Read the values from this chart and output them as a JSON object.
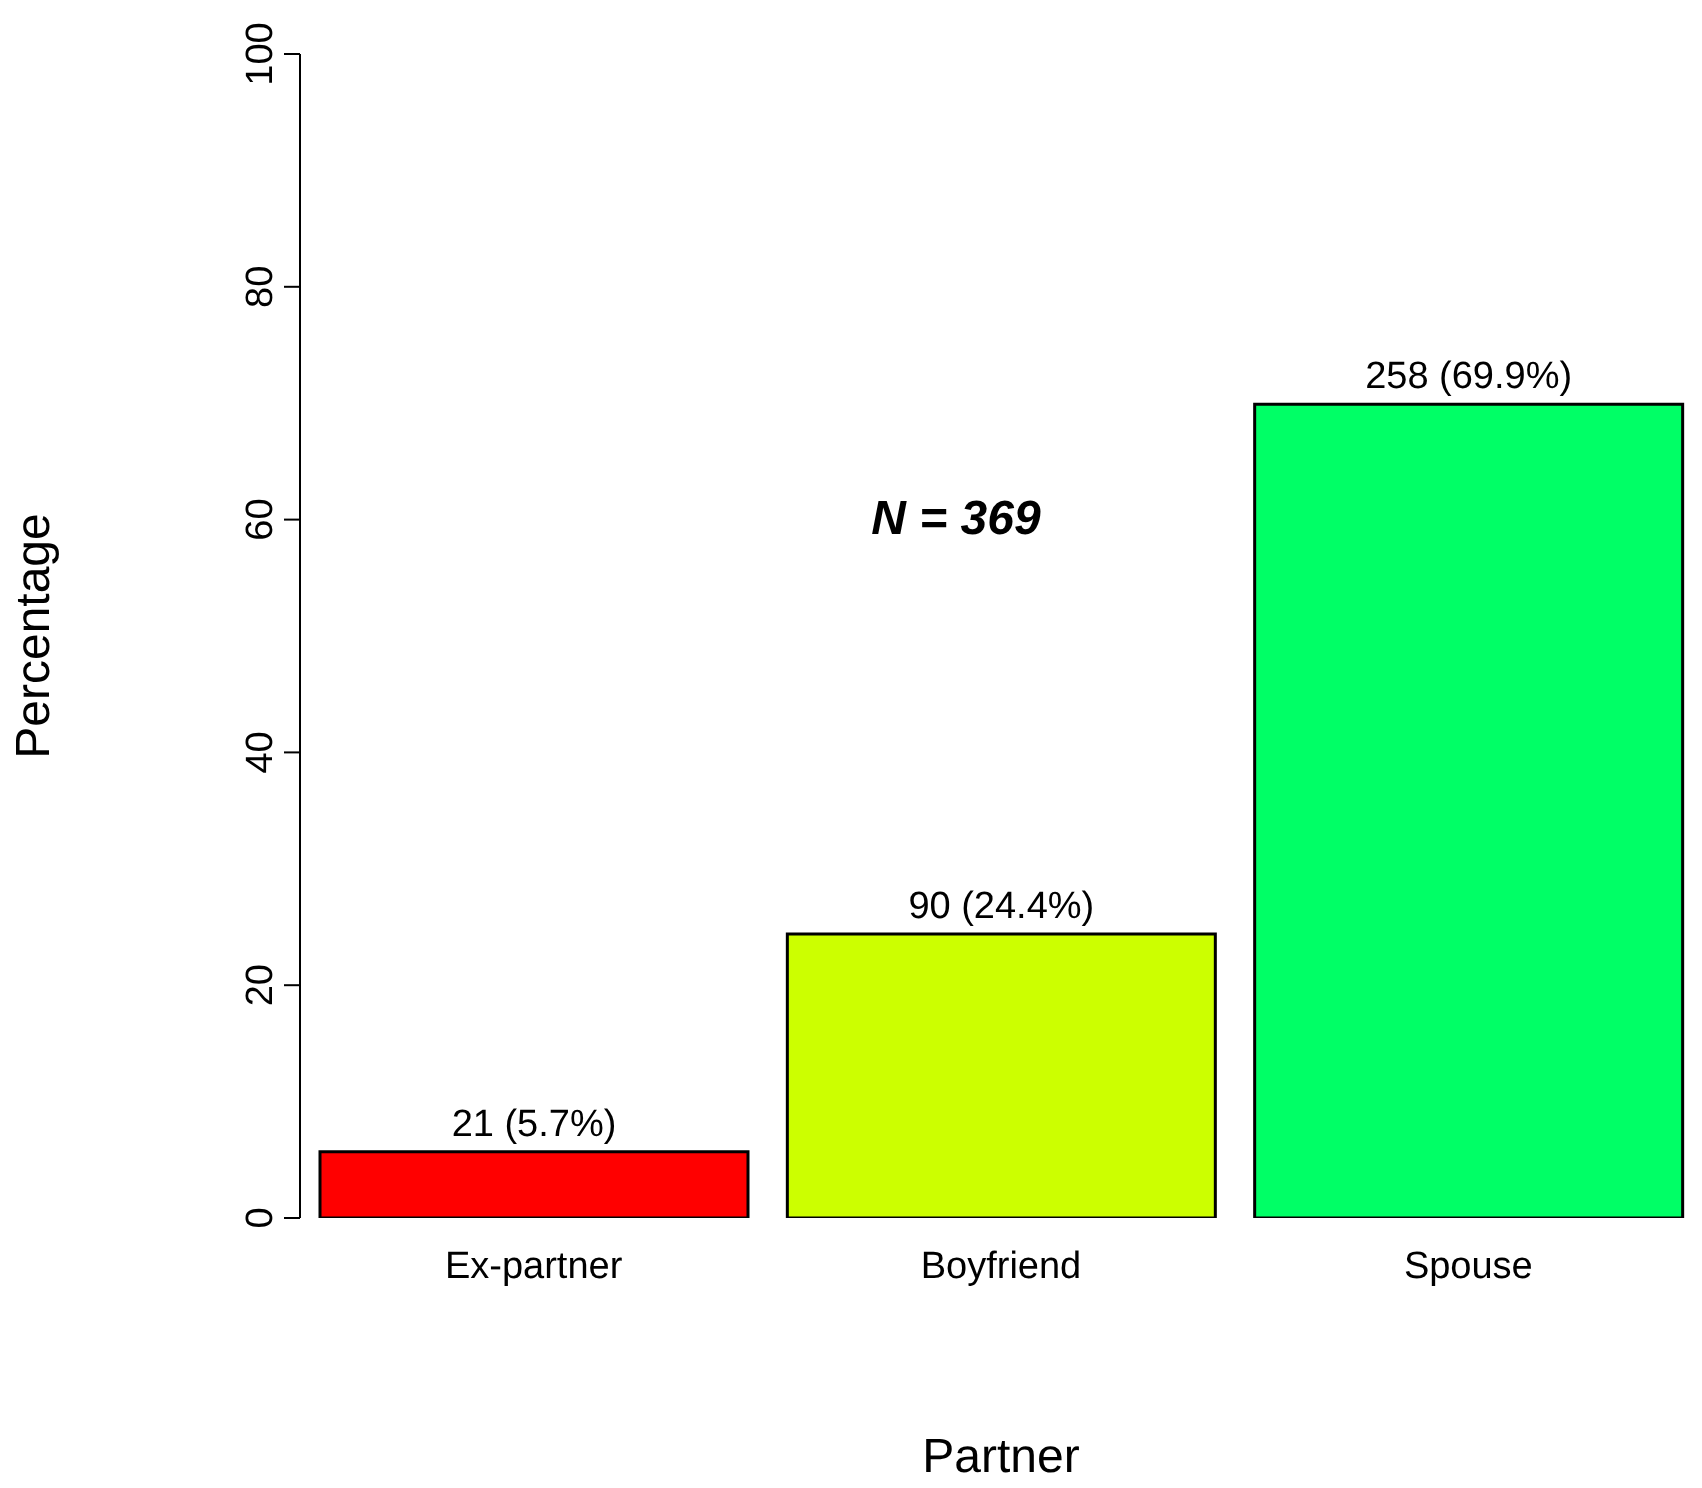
{
  "chart_data": {
    "type": "bar",
    "xlabel": "Partner",
    "ylabel": "Percentage",
    "categories": [
      "Ex-partner",
      "Boyfriend",
      "Spouse"
    ],
    "values": [
      5.7,
      24.4,
      69.9
    ],
    "colors": [
      "#ff0000",
      "#ccff00",
      "#00ff66"
    ],
    "value_labels": [
      "21 (5.7%)",
      "90 (24.4%)",
      "258 (69.9%)"
    ],
    "annotations": [
      "N = 369"
    ],
    "ylim": [
      0,
      100
    ],
    "yticks": [
      0,
      20,
      40,
      60,
      80,
      100
    ],
    "grid": false,
    "legend": false
  }
}
